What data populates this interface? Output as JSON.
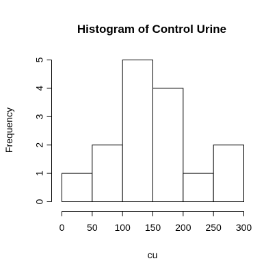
{
  "chart_data": {
    "type": "bar",
    "title": "Histogram of Control Urine",
    "xlabel": "cu",
    "ylabel": "Frequency",
    "bin_edges": [
      0,
      50,
      100,
      150,
      200,
      250,
      300
    ],
    "values": [
      1,
      2,
      5,
      4,
      1,
      2
    ],
    "xlim": [
      0,
      300
    ],
    "ylim": [
      0,
      5
    ],
    "x_ticks": [
      0,
      50,
      100,
      150,
      200,
      250,
      300
    ],
    "y_ticks": [
      0,
      1,
      2,
      3,
      4,
      5
    ],
    "x_tick_labels": [
      "0",
      "50",
      "100",
      "150",
      "200",
      "250",
      "300"
    ],
    "y_tick_labels": [
      "0",
      "1",
      "2",
      "3",
      "4",
      "5"
    ],
    "grid": false,
    "bar_fill": "#ffffff",
    "bar_stroke": "#000000"
  }
}
